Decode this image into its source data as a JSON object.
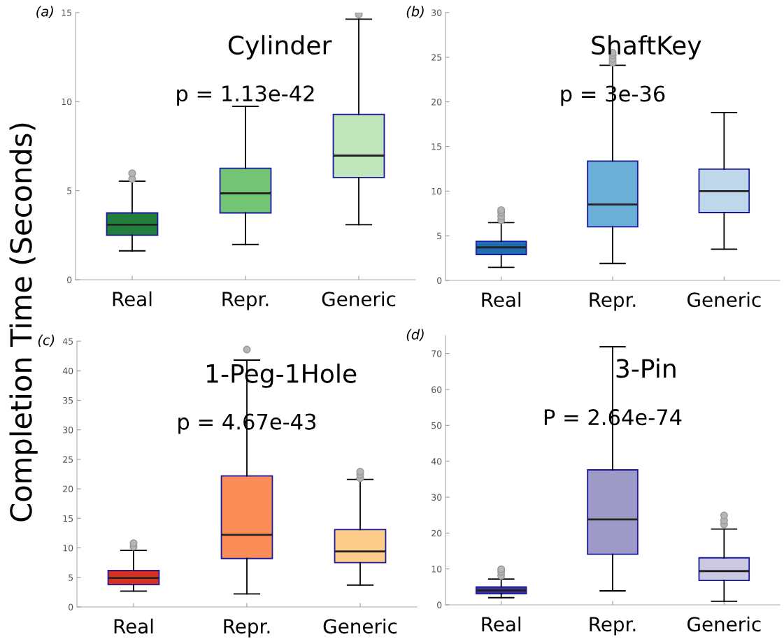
{
  "chart_data": [
    {
      "type": "box",
      "title": "Cylinder",
      "ylabel": "Completion Time (Seconds)",
      "annotations": [
        "(a)",
        "p = 1.13e-42"
      ],
      "categories": [
        "Real",
        "Repr.",
        "Generic"
      ],
      "colors": [
        "#217f3b",
        "#74c476",
        "#c1e6bb"
      ],
      "ylim": [
        0,
        15
      ],
      "yticks": [
        0,
        5,
        10,
        15
      ],
      "boxes": [
        {
          "low": 1.62,
          "q1": 2.5,
          "median": 3.09,
          "q3": 3.75,
          "high": 5.53,
          "outliers": [
            5.66,
            5.98
          ]
        },
        {
          "low": 1.98,
          "q1": 3.75,
          "median": 4.85,
          "q3": 6.26,
          "high": 9.73
        },
        {
          "low": 3.09,
          "q1": 5.74,
          "median": 6.97,
          "q3": 9.28,
          "high": 14.63,
          "outliers": [
            14.9
          ]
        }
      ]
    },
    {
      "type": "box",
      "title": "ShaftKey",
      "annotations": [
        "(b)",
        "p = 3e-36"
      ],
      "categories": [
        "Real",
        "Repr.",
        "Generic"
      ],
      "colors": [
        "#1f6db3",
        "#6baed6",
        "#bfd7ea"
      ],
      "ylim": [
        0,
        30
      ],
      "yticks": [
        0,
        5,
        10,
        15,
        20,
        25,
        30
      ],
      "boxes": [
        {
          "low": 1.46,
          "q1": 2.9,
          "median": 3.7,
          "q3": 4.37,
          "high": 6.47,
          "outliers": [
            6.75,
            7.17,
            7.6,
            7.87
          ]
        },
        {
          "low": 1.9,
          "q1": 6.0,
          "median": 8.5,
          "q3": 13.36,
          "high": 24.1,
          "outliers": [
            24.4,
            24.8,
            25.2,
            25.5
          ]
        },
        {
          "low": 3.5,
          "q1": 7.6,
          "median": 10.0,
          "q3": 12.47,
          "high": 18.8
        }
      ]
    },
    {
      "type": "box",
      "title": "1-Peg-1Hole",
      "annotations": [
        "(c)",
        "p = 4.67e-43"
      ],
      "categories": [
        "Real",
        "Repr.",
        "Generic"
      ],
      "colors": [
        "#d7301f",
        "#fc8d59",
        "#fdcc8a"
      ],
      "ylim": [
        0,
        45
      ],
      "yticks": [
        0,
        5,
        10,
        15,
        20,
        25,
        30,
        35,
        40,
        45
      ],
      "boxes": [
        {
          "low": 2.67,
          "q1": 3.77,
          "median": 4.9,
          "q3": 6.18,
          "high": 9.57,
          "outliers": [
            10.2,
            10.8
          ]
        },
        {
          "low": 2.2,
          "q1": 8.2,
          "median": 12.2,
          "q3": 22.2,
          "high": 41.8,
          "outliers": [
            43.6
          ]
        },
        {
          "low": 3.7,
          "q1": 7.5,
          "median": 9.4,
          "q3": 13.1,
          "high": 21.6,
          "outliers": [
            21.8,
            22.4,
            22.9
          ]
        }
      ]
    },
    {
      "type": "box",
      "title": "3-Pin",
      "annotations": [
        "(d)",
        "P = 2.64e-74"
      ],
      "categories": [
        "Real",
        "Repr.",
        "Generic"
      ],
      "colors": [
        "#3c3494",
        "#9e9ac8",
        "#cbc9e2"
      ],
      "ylim": [
        0,
        75
      ],
      "yticks": [
        0,
        10,
        20,
        30,
        40,
        50,
        60,
        70
      ],
      "boxes": [
        {
          "low": 2.0,
          "q1": 3.1,
          "median": 4.0,
          "q3": 5.0,
          "high": 7.2,
          "outliers": [
            8.1,
            9.2,
            9.9
          ]
        },
        {
          "low": 3.9,
          "q1": 14.1,
          "median": 23.8,
          "q3": 37.6,
          "high": 71.9
        },
        {
          "low": 1.0,
          "q1": 6.8,
          "median": 9.4,
          "q3": 13.1,
          "high": 21.1,
          "outliers": [
            22.4,
            23.5,
            24.9
          ]
        }
      ]
    }
  ]
}
